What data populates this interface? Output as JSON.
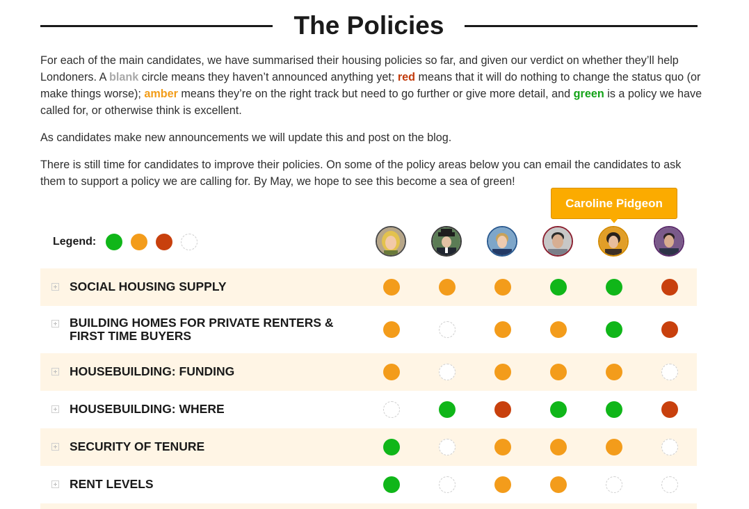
{
  "page": {
    "title": "The Policies",
    "intro": {
      "p1_before_blank": "For each of the main candidates, we have summarised their housing policies so far, and given our verdict on whether they’ll help Londoners. A ",
      "word_blank": "blank",
      "p1_after_blank": " circle means they haven’t announced anything yet; ",
      "word_red": "red",
      "p1_after_red": " means that it will do nothing to change the status quo (or make things worse); ",
      "word_amber": "amber",
      "p1_after_amber": " means they’re on the right track but need to go further or give more detail, and ",
      "word_green": "green",
      "p1_after_green": " is a policy we have called for, or otherwise think is excellent.",
      "p2": "As candidates make new announcements we will update this and post on the blog.",
      "p3": "There is still time for candidates to improve their policies. On some of the policy areas below you can email the candidates to ask them to support a policy we are calling for. By May, we hope to see this become a sea of green!"
    }
  },
  "legend": {
    "label": "Legend:",
    "items": [
      "green",
      "amber",
      "red",
      "blank"
    ]
  },
  "colors": {
    "green": "#10b619",
    "amber": "#f39c1b",
    "red": "#c8400d",
    "row_alt_bg": "#fff5e5",
    "tooltip_bg": "#fbab00"
  },
  "tooltip": {
    "text": "Caroline Pidgeon"
  },
  "candidates": [
    {
      "avatar": "candidate-1-avatar"
    },
    {
      "avatar": "candidate-2-avatar"
    },
    {
      "avatar": "candidate-3-avatar"
    },
    {
      "avatar": "candidate-4-avatar"
    },
    {
      "avatar": "caroline-pidgeon-avatar"
    },
    {
      "avatar": "candidate-6-avatar"
    }
  ],
  "policies": [
    {
      "label": "Social housing supply",
      "ratings": [
        "amber",
        "amber",
        "amber",
        "green",
        "green",
        "red"
      ]
    },
    {
      "label": "Building homes for private renters & first time buyers",
      "ratings": [
        "amber",
        "blank",
        "amber",
        "amber",
        "green",
        "red"
      ]
    },
    {
      "label": "Housebuilding: Funding",
      "ratings": [
        "amber",
        "blank",
        "amber",
        "amber",
        "amber",
        "blank"
      ]
    },
    {
      "label": "Housebuilding: Where",
      "ratings": [
        "blank",
        "green",
        "red",
        "green",
        "green",
        "red"
      ]
    },
    {
      "label": "Security of tenure",
      "ratings": [
        "green",
        "blank",
        "amber",
        "amber",
        "amber",
        "blank"
      ]
    },
    {
      "label": "Rent levels",
      "ratings": [
        "green",
        "blank",
        "amber",
        "amber",
        "blank",
        "blank"
      ]
    }
  ]
}
